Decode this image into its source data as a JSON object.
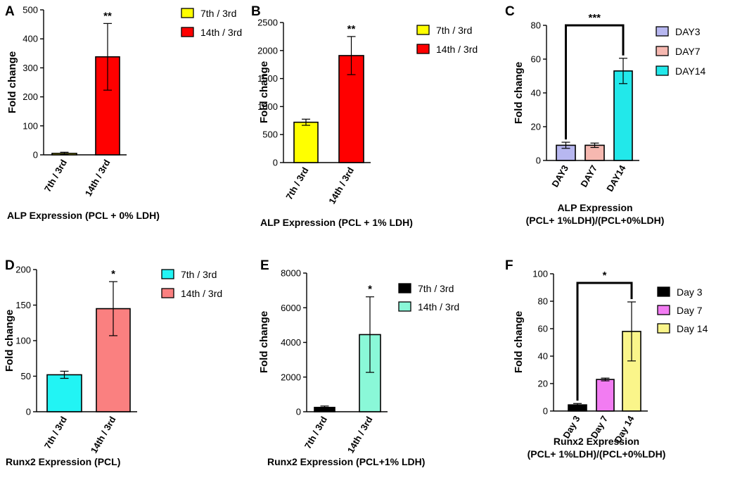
{
  "chart_data": [
    {
      "type": "bar",
      "panel_label": "A",
      "title": "ALP Expression (PCL + 0% LDH)",
      "ylabel": "Fold change",
      "xlabel": "",
      "ylim": [
        0,
        500
      ],
      "yticks": [
        0,
        100,
        200,
        300,
        400,
        500
      ],
      "categories": [
        "7th / 3rd",
        "14th / 3rd"
      ],
      "values": [
        5,
        338
      ],
      "errors": [
        4,
        115
      ],
      "colors": [
        "#FFFF00",
        "#FF0000"
      ],
      "legend": [
        "7th / 3rd",
        "14th / 3rd"
      ],
      "significance": [
        {
          "index": 1,
          "label": "**"
        }
      ]
    },
    {
      "type": "bar",
      "panel_label": "B",
      "title": "ALP Expression (PCL + 1% LDH)",
      "ylabel": "Fold change",
      "xlabel": "",
      "ylim": [
        0,
        2500
      ],
      "yticks": [
        0,
        500,
        1000,
        1500,
        2000,
        2500
      ],
      "categories": [
        "7th / 3rd",
        "14th / 3rd"
      ],
      "values": [
        720,
        1910
      ],
      "errors": [
        55,
        340
      ],
      "colors": [
        "#FFFF00",
        "#FF0000"
      ],
      "legend": [
        "7th / 3rd",
        "14th / 3rd"
      ],
      "significance": [
        {
          "index": 1,
          "label": "**"
        }
      ]
    },
    {
      "type": "bar",
      "panel_label": "C",
      "title": "ALP Expression",
      "title_line2": "(PCL+ 1%LDH)/(PCL+0%LDH)",
      "ylabel": "Fold change",
      "xlabel": "",
      "ylim": [
        0,
        80
      ],
      "yticks": [
        0,
        20,
        40,
        60,
        80
      ],
      "categories": [
        "DAY3",
        "DAY7",
        "DAY14"
      ],
      "values": [
        9,
        9,
        53
      ],
      "errors": [
        1.8,
        1.3,
        7.5
      ],
      "colors": [
        "#B7B7F0",
        "#F6B8B0",
        "#22E8EA"
      ],
      "legend": [
        "DAY3",
        "DAY7",
        "DAY14"
      ],
      "bracket": {
        "from": 0,
        "to": 2,
        "label": "***"
      }
    },
    {
      "type": "bar",
      "panel_label": "D",
      "title": "Runx2 Expression (PCL)",
      "ylabel": "Fold change",
      "xlabel": "",
      "ylim": [
        0,
        200
      ],
      "yticks": [
        0,
        50,
        100,
        150,
        200
      ],
      "categories": [
        "7th / 3rd",
        "14th / 3rd"
      ],
      "values": [
        52,
        145
      ],
      "errors": [
        5,
        38
      ],
      "colors": [
        "#22F4F4",
        "#FA8080"
      ],
      "legend": [
        "7th / 3rd",
        "14th / 3rd"
      ],
      "significance": [
        {
          "index": 1,
          "label": "*"
        }
      ]
    },
    {
      "type": "bar",
      "panel_label": "E",
      "title": "Runx2 Expression (PCL+1% LDH)",
      "ylabel": "Fold change",
      "xlabel": "",
      "ylim": [
        0,
        8000
      ],
      "yticks": [
        0,
        2000,
        4000,
        6000,
        8000
      ],
      "categories": [
        "7th / 3rd",
        "14th / 3rd"
      ],
      "values": [
        250,
        4450
      ],
      "errors": [
        80,
        2180
      ],
      "colors": [
        "#000000",
        "#8AF8D8"
      ],
      "legend": [
        "7th / 3rd",
        "14th / 3rd"
      ],
      "significance": [
        {
          "index": 1,
          "label": "*"
        }
      ]
    },
    {
      "type": "bar",
      "panel_label": "F",
      "title": "Runx2 Expression",
      "title_line2": "(PCL+ 1%LDH)/(PCL+0%LDH)",
      "ylabel": "Fold change",
      "xlabel": "",
      "ylim": [
        0,
        100
      ],
      "yticks": [
        0,
        20,
        40,
        60,
        80,
        100
      ],
      "categories": [
        "Day 3",
        "Day 7",
        "Day 14"
      ],
      "values": [
        4.5,
        23,
        58
      ],
      "errors": [
        1,
        1,
        21.5
      ],
      "colors": [
        "#000000",
        "#F27CF2",
        "#FAF58A"
      ],
      "legend": [
        "Day 3",
        "Day 7",
        "Day 14"
      ],
      "bracket": {
        "from": 0,
        "to": 2,
        "label": "*"
      }
    }
  ]
}
